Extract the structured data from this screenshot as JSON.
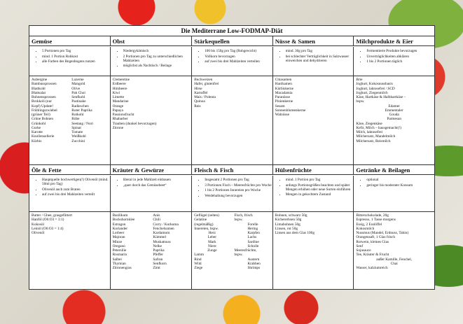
{
  "title": "Die Mediterrane Low-FODMAP-Diät",
  "top": {
    "headers": [
      "Gemüse",
      "Obst",
      "Stärkequellen",
      "Nüsse & Samen",
      "Milchprodukte & Eier"
    ],
    "tips": [
      [
        "5 Portionen pro Tag",
        "mind. 1 Portion Rohkost",
        "alle Farben des Regenbogens nutzen"
      ],
      [
        "Niedergykämisch",
        "2 Portionen pro Tag zu unterschiedlichen Mahlzeiten",
        "möglichst als Nachtisch / Beilage"
      ],
      [
        "100 bis 150g pro Tag (Rohgewicht)",
        "Vollkorn bevorzugen",
        "auf zwei bis drei Mahlzeiten verteilen"
      ],
      [
        "mind. 30g pro Tag",
        "bei schlechter Verträglichkeit in Salzwasser einweichen und dehydrieren"
      ],
      [
        "Fermentierte Produkte bevorzugen",
        "Unverträglichkeiten abklären",
        "1 bis 2 Portionen täglich"
      ]
    ],
    "gemuese_a": "Aubergine\nBambussprossen\nBlattkohl\nBlattsalat\nBohnensprossen\nBrokkoli (nur\nKopf) Update!\nFrühlingszwiebel\n(grüner Teil)\nGrüne Bohnen\nGrünkohl\nGurke\nKarotte\nKnollensellerie\nKürbis",
    "gemuese_b": "Luzerne\nMangold\nOlive\nPak Choi\nSenfkohl\nPastinake\nRadieschen\nRoter Paprika\nRotkohl\nRübe\nSeetang / Nori\nSpinat\nTomate\nWeißkohl\nZucchini",
    "obst": "Clementine\nErdbeere\nHimbeere\nKiwi\nLimette\nMandarine\nOrange\nPapaya\nPassionsfrucht\nRhabarber\nTrauben (dunkel bevorzugen)\nZitrone",
    "staerke": "Buchweizen\nHafer, glutenfrei\nHirse\nKartoffel\nMais / Polenta\nQuinoa\nReis",
    "nuesse": "Chiasamen\nHanfsamen\nKürbiskerne\nMacadamia\nParanüsse\nPinienkerne\nSesam\nSonnenblumenkerne\nWalnüsse",
    "milch_a": "Brie\nJoghurt, Kokosnussbasis\nJoghurt, laktosefrei / SCD\nJoghurt, Ziegenmilch\nKäse, Hartkäse & Halbhartkäse –\nbspw.",
    "milch_b": "Edamer\nEmmentaler\nGouda\nParmesan",
    "milch_c": "Käse, Ziegenkäse\nKefir, Milch – hausgemacht(!)\nMilch, laktosefrei\nMilchersatz, Mandelmilch\nMilchersatz, Reismilch"
  },
  "bottom": {
    "headers": [
      "Öle & Fette",
      "Kräuter & Gewürze",
      "Fleisch & Fisch",
      "Hülsenfrüchte",
      "Getränke & Beilagen"
    ],
    "tips": [
      [
        "Hauptquelle hochwertigen(!) Olivenöl (mind. 50ml pro Tag)",
        "Olivenöl auch zum Braten",
        "auf zwei bis drei Mahlzeiten verteilt"
      ],
      [
        "liberal in jede Mahlzeit einbauen",
        "„quer durch das Gemüsebeet“"
      ],
      [
        "Insgesamt 2 Portionen pro Tag",
        "3 Portionen Fisch – Meeresfrüchte pro Woche",
        "1 bis 2 Portionen Innereien pro Woche",
        "Weidehaltung bevorzugen"
      ],
      [
        "mind. 1 Portion pro Tag",
        "anfangs Portionsgrößen beachten und später Mengen erhöhen oder neue Sorten einführen",
        "Mengen in gekochtem Zustand"
      ],
      [
        "optional",
        "geringer bis moderater Konsum"
      ]
    ],
    "oele": "Butter / Ghee, grasgefüttert\nHanföl (O6:O3 = 3:1)\nKokosöl\nLeinöl (O6:O3 = 1:4)\nOlivenöl",
    "kraeuter_a": "Basilikum\nBockshornklee\nEstragon\nKoriander\nLorbeer\nMajoran\nMinze\nOregano\nPetersilie\nRosmarin\nSalbei\nThymian\nZitronengras",
    "kraeuter_b": "Anis\nChili\nCurry / Kurkuma\nFenchelsamen\nKardamom\nKümmel\nMuskatnuss\nNelke\nPaprika\nPfeffer\nSafran\nSenfkorn\nZimt",
    "fleisch_a": "Geflügel (selten)\nGelatine\n(regelmäßig)\nInnereien, bspw.",
    "fleisch_b": "Herz\nLeber\nMark\nNiere\nZunge",
    "fleisch_c": "Lamm\nRind\nWild\nZiege",
    "fisch_a": "Fisch, frisch\nbspw.",
    "fisch_b": "Forelle\nHering\nKarpfen\nLachs\nSardine\nScholle",
    "fisch_c": "Meeresfrüchte,\nbspw.",
    "fisch_d": "Austern\nKrabben\nShrimps",
    "huelsen": "Bohnen, schwarz 50g\nKichererbsen 50g\nLimabohnen 50g\nLinsen, rot 50g\nLinsen aus dem Glas 100g",
    "getraenke_a": "Bitterschokolade, 20g\nEspresso, 1 Tasse morgens\nEssig, 2 Esslöffel\nKokosmilch\nNussmus (Mandel, Erdnuss, Tahin)\nOrangensaft, 1 Glas frisch\nRotwein, kleines Glas\nSenf\nSojasauce\nTee, Kräuter & Frucht",
    "getraenke_b": "außer Kamille, Fenchel,\nChai",
    "getraenke_c": "Wasser, kalziumreich"
  }
}
